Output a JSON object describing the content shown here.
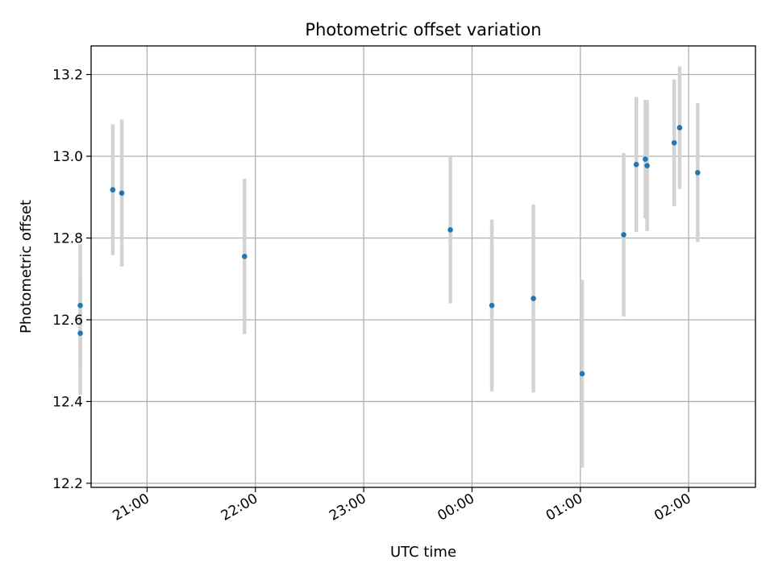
{
  "chart_data": {
    "type": "scatter",
    "title": "Photometric offset variation",
    "xlabel": "UTC time",
    "ylabel": "Photometric offset",
    "xlim": [
      "20:29",
      "02:37"
    ],
    "ylim": [
      12.19,
      13.27
    ],
    "x_ticks": [
      "21:00",
      "22:00",
      "23:00",
      "00:00",
      "01:00",
      "02:00"
    ],
    "y_ticks": [
      12.2,
      12.4,
      12.6,
      12.8,
      13.0,
      13.2
    ],
    "grid": true,
    "colors": {
      "point": "#1f77b4",
      "errorbar": "#d3d3d3",
      "grid": "#b0b0b0"
    },
    "points": [
      {
        "time": "20:23",
        "y": 12.567,
        "err": 0.15
      },
      {
        "time": "20:23",
        "y": 12.635,
        "err": 0.15
      },
      {
        "time": "20:41",
        "y": 12.918,
        "err": 0.16
      },
      {
        "time": "20:46",
        "y": 12.91,
        "err": 0.18
      },
      {
        "time": "21:54",
        "y": 12.755,
        "err": 0.19
      },
      {
        "time": "23:48",
        "y": 12.82,
        "err": 0.18
      },
      {
        "time": "00:11",
        "y": 12.635,
        "err": 0.21
      },
      {
        "time": "00:34",
        "y": 12.652,
        "err": 0.23
      },
      {
        "time": "01:01",
        "y": 12.468,
        "err": 0.23
      },
      {
        "time": "01:24",
        "y": 12.808,
        "err": 0.2
      },
      {
        "time": "01:31",
        "y": 12.98,
        "err": 0.165
      },
      {
        "time": "01:36",
        "y": 12.993,
        "err": 0.145
      },
      {
        "time": "01:37",
        "y": 12.977,
        "err": 0.16
      },
      {
        "time": "01:52",
        "y": 13.033,
        "err": 0.155
      },
      {
        "time": "01:55",
        "y": 13.07,
        "err": 0.15
      },
      {
        "time": "02:05",
        "y": 12.96,
        "err": 0.17
      }
    ]
  }
}
